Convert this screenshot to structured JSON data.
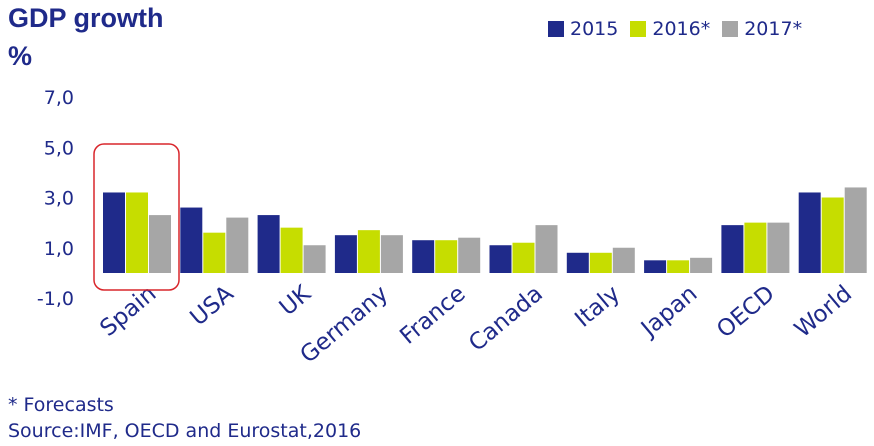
{
  "chart_data": {
    "type": "bar",
    "title": "GDP growth",
    "unit": "%",
    "categories": [
      "Spain",
      "USA",
      "UK",
      "Germany",
      "France",
      "Canada",
      "Italy",
      "Japan",
      "OECD",
      "World"
    ],
    "series": [
      {
        "name": "2015",
        "color": "#1f2a8a",
        "values": [
          3.2,
          2.6,
          2.3,
          1.5,
          1.3,
          1.1,
          0.8,
          0.5,
          1.9,
          3.2
        ]
      },
      {
        "name": "2016*",
        "color": "#c6dd00",
        "values": [
          3.2,
          1.6,
          1.8,
          1.7,
          1.3,
          1.2,
          0.8,
          0.5,
          2.0,
          3.0
        ]
      },
      {
        "name": "2017*",
        "color": "#a6a6a6",
        "values": [
          2.3,
          2.2,
          1.1,
          1.5,
          1.4,
          1.9,
          1.0,
          0.6,
          2.0,
          3.4
        ]
      }
    ],
    "y_ticks": [
      "7,0",
      "5,0",
      "3,0",
      "1,0",
      "-1,0"
    ],
    "ylim": [
      -1,
      7
    ],
    "grid": false,
    "legend_position": "top-right",
    "highlight_category": "Spain",
    "highlight_color": "#d9262c"
  },
  "footnotes": {
    "forecasts": "* Forecasts",
    "source": "Source:IMF, OECD and Eurostat,2016"
  }
}
